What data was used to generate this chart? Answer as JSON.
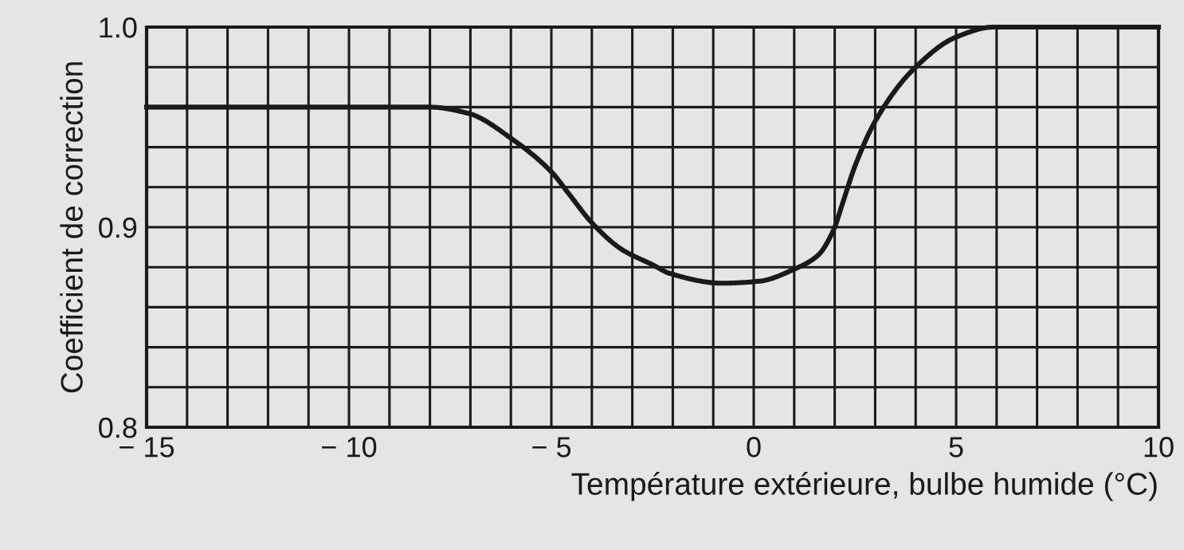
{
  "chart_data": {
    "type": "line",
    "xlabel": "Température extérieure, bulbe humide (°C)",
    "ylabel": "Coefficient de correction",
    "x": [
      -15,
      -8.0,
      -7.07,
      -5.9,
      -4.97,
      -4.58,
      -3.99,
      -3.27,
      -2.48,
      -2.09,
      -0.78,
      0.14,
      1.0,
      1.59,
      1.98,
      2.18,
      2.51,
      3.03,
      3.95,
      5.0,
      5.92,
      10
    ],
    "series": [
      {
        "color": "#1a1a1a",
        "values": [
          0.96,
          0.96,
          0.957,
          0.943,
          0.927,
          0.917,
          0.902,
          0.889,
          0.881,
          0.877,
          0.872,
          0.873,
          0.879,
          0.886,
          0.899,
          0.911,
          0.931,
          0.954,
          0.979,
          0.995,
          1.0,
          1.0
        ]
      }
    ],
    "xlim": [
      -15,
      10
    ],
    "ylim": [
      0.8,
      1.0
    ],
    "xticks": [
      -15,
      {
        "value": -14,
        "label": null
      },
      {
        "value": -13,
        "label": null
      },
      {
        "value": -12,
        "label": null
      },
      {
        "value": -11,
        "label": null
      },
      -10,
      {
        "value": -9,
        "label": null
      },
      {
        "value": -8,
        "label": null
      },
      {
        "value": -7,
        "label": null
      },
      {
        "value": -6,
        "label": null
      },
      -5,
      {
        "value": -4,
        "label": null
      },
      {
        "value": -3,
        "label": null
      },
      {
        "value": -2,
        "label": null
      },
      {
        "value": -1,
        "label": null
      },
      0,
      {
        "value": 1,
        "label": null
      },
      {
        "value": 2,
        "label": null
      },
      {
        "value": 3,
        "label": null
      },
      {
        "value": 4,
        "label": null
      },
      5,
      {
        "value": 6,
        "label": null
      },
      {
        "value": 7,
        "label": null
      },
      {
        "value": 8,
        "label": null
      },
      {
        "value": 9,
        "label": null
      },
      10
    ],
    "yticks": [
      0.8,
      {
        "value": 0.82,
        "label": null
      },
      {
        "value": 0.84,
        "label": null
      },
      {
        "value": 0.86,
        "label": null
      },
      {
        "value": 0.88,
        "label": null
      },
      0.9,
      {
        "value": 0.92,
        "label": null
      },
      {
        "value": 0.94,
        "label": null
      },
      {
        "value": 0.96,
        "label": null
      },
      {
        "value": 0.98,
        "label": null
      },
      {
        "value": 1.0,
        "label": "1.0"
      }
    ],
    "grid": true,
    "marker": "none",
    "line_style": "solid"
  }
}
